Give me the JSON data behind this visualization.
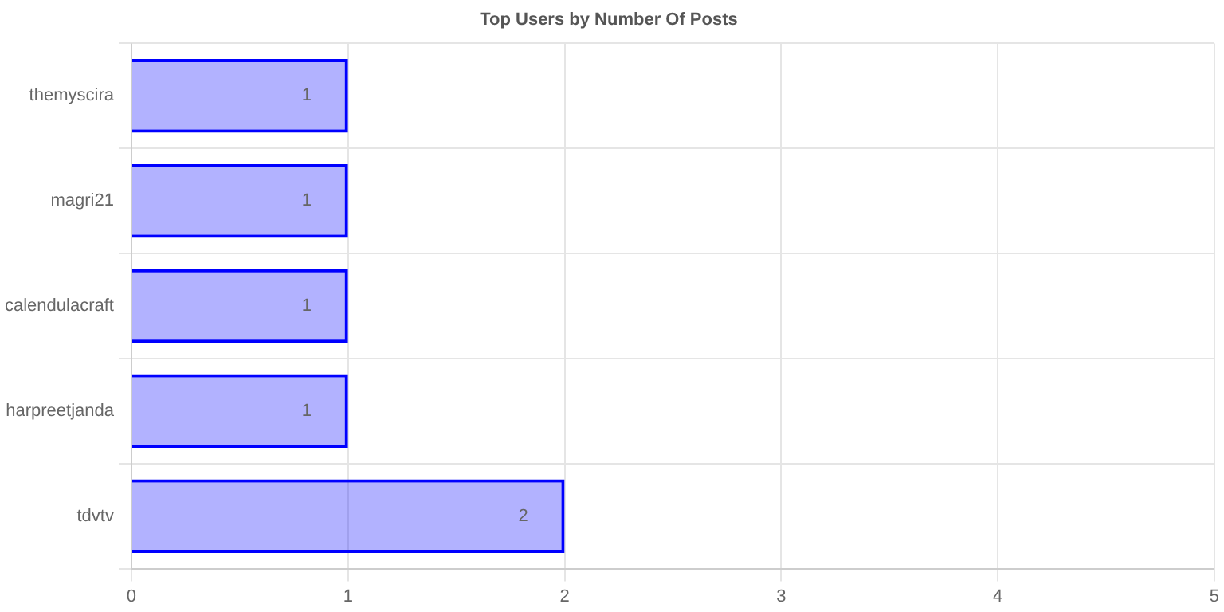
{
  "chart_data": {
    "type": "bar",
    "orientation": "horizontal",
    "title": "Top Users by Number Of Posts",
    "categories": [
      "themyscira",
      "magri21",
      "calendulacraft",
      "harpreetjanda",
      "tdvtv"
    ],
    "values": [
      1,
      1,
      1,
      1,
      2
    ],
    "color": "#0000ff",
    "xlim": [
      0,
      5
    ],
    "xticks": [
      0,
      1,
      2,
      3,
      4,
      5
    ],
    "grid": true,
    "data_labels": true,
    "legend": false
  }
}
